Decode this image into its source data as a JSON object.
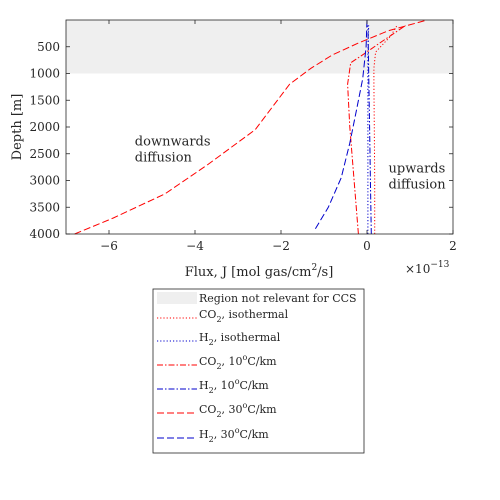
{
  "chart_data": {
    "type": "line",
    "xlabel_main": "Flux, J [mol gas/cm",
    "xlabel_sup": "2",
    "xlabel_tail": "/s]",
    "xlabel_sup_text": "2",
    "xscale_label": "×10",
    "xscale_exp": "−13",
    "ylabel": "Depth [m]",
    "xlim": [
      -7,
      2
    ],
    "ylim": [
      4000,
      0
    ],
    "y_reversed": true,
    "xticks": [
      -6,
      -4,
      -2,
      0,
      2
    ],
    "xtick_labels": [
      "−6",
      "−4",
      "−2",
      "0",
      "2"
    ],
    "yticks": [
      500,
      1000,
      1500,
      2000,
      2500,
      3000,
      3500,
      4000
    ],
    "ytick_labels": [
      "500",
      "1000",
      "1500",
      "2000",
      "2500",
      "3000",
      "3500",
      "4000"
    ],
    "shaded_region": {
      "y_from": 0,
      "y_to": 1000,
      "color": "#efefef",
      "label": "Region not relevant for CCS"
    },
    "annotations": [
      {
        "lines": [
          "downwards",
          "diffusion"
        ],
        "x": -5.4,
        "y": 2350
      },
      {
        "lines": [
          "upwards",
          "diffusion"
        ],
        "x": 0.5,
        "y": 2850
      }
    ],
    "series": [
      {
        "gas": "CO",
        "sub": "2",
        "cond": ", isothermal",
        "color": "#ff0000",
        "dash": "1.2 2",
        "points": [
          [
            0.18,
            4000
          ],
          [
            0.18,
            3000
          ],
          [
            0.17,
            2000
          ],
          [
            0.16,
            1200
          ],
          [
            0.16,
            900
          ],
          [
            0.2,
            600
          ],
          [
            0.55,
            300
          ],
          [
            0.7,
            100
          ]
        ]
      },
      {
        "gas": "H",
        "sub": "2",
        "cond": ", isothermal",
        "color": "#0000cc",
        "dash": "1.2 2",
        "points": [
          [
            0.02,
            4000
          ],
          [
            0.02,
            3000
          ],
          [
            0.02,
            2000
          ],
          [
            0.02,
            1000
          ],
          [
            0.02,
            600
          ],
          [
            0.03,
            300
          ],
          [
            0.04,
            100
          ]
        ]
      },
      {
        "gas": "CO",
        "sub": "2",
        "cond": ", 10°C/km",
        "color": "#ff0000",
        "dash": "6 2 1.5 2",
        "points": [
          [
            -0.2,
            4000
          ],
          [
            -0.3,
            3000
          ],
          [
            -0.4,
            2000
          ],
          [
            -0.45,
            1200
          ],
          [
            -0.38,
            800
          ],
          [
            -0.1,
            650
          ],
          [
            0.35,
            400
          ],
          [
            0.9,
            100
          ]
        ]
      },
      {
        "gas": "H",
        "sub": "2",
        "cond": ", 10°C/km",
        "color": "#0000cc",
        "dash": "6 2 1.5 2",
        "points": [
          [
            0.1,
            4000
          ],
          [
            0.08,
            3000
          ],
          [
            0.06,
            2000
          ],
          [
            0.04,
            1000
          ],
          [
            0.03,
            500
          ],
          [
            0.02,
            100
          ]
        ]
      },
      {
        "gas": "CO",
        "sub": "2",
        "cond": ", 30°C/km",
        "color": "#ff0000",
        "dash": "7 3",
        "points": [
          [
            -6.8,
            4000
          ],
          [
            -5.9,
            3700
          ],
          [
            -4.7,
            3250
          ],
          [
            -3.7,
            2700
          ],
          [
            -2.6,
            2050
          ],
          [
            -1.8,
            1200
          ],
          [
            -1.3,
            900
          ],
          [
            -0.8,
            650
          ],
          [
            -0.2,
            430
          ],
          [
            0.5,
            200
          ],
          [
            1.4,
            0
          ]
        ]
      },
      {
        "gas": "H",
        "sub": "2",
        "cond": ", 30°C/km",
        "color": "#0000cc",
        "dash": "7 3",
        "points": [
          [
            -1.2,
            3900
          ],
          [
            -0.9,
            3500
          ],
          [
            -0.6,
            2950
          ],
          [
            -0.4,
            2300
          ],
          [
            -0.25,
            1700
          ],
          [
            -0.1,
            1100
          ],
          [
            -0.02,
            500
          ],
          [
            0.0,
            0
          ]
        ]
      }
    ]
  },
  "legend": {
    "shaded_label": "Region not relevant for CCS",
    "cond_isothermal": ", isothermal",
    "cond_10_pre": ", 10",
    "cond_30_pre": ", 30",
    "deg_sup": "o",
    "unit": "C/km"
  }
}
